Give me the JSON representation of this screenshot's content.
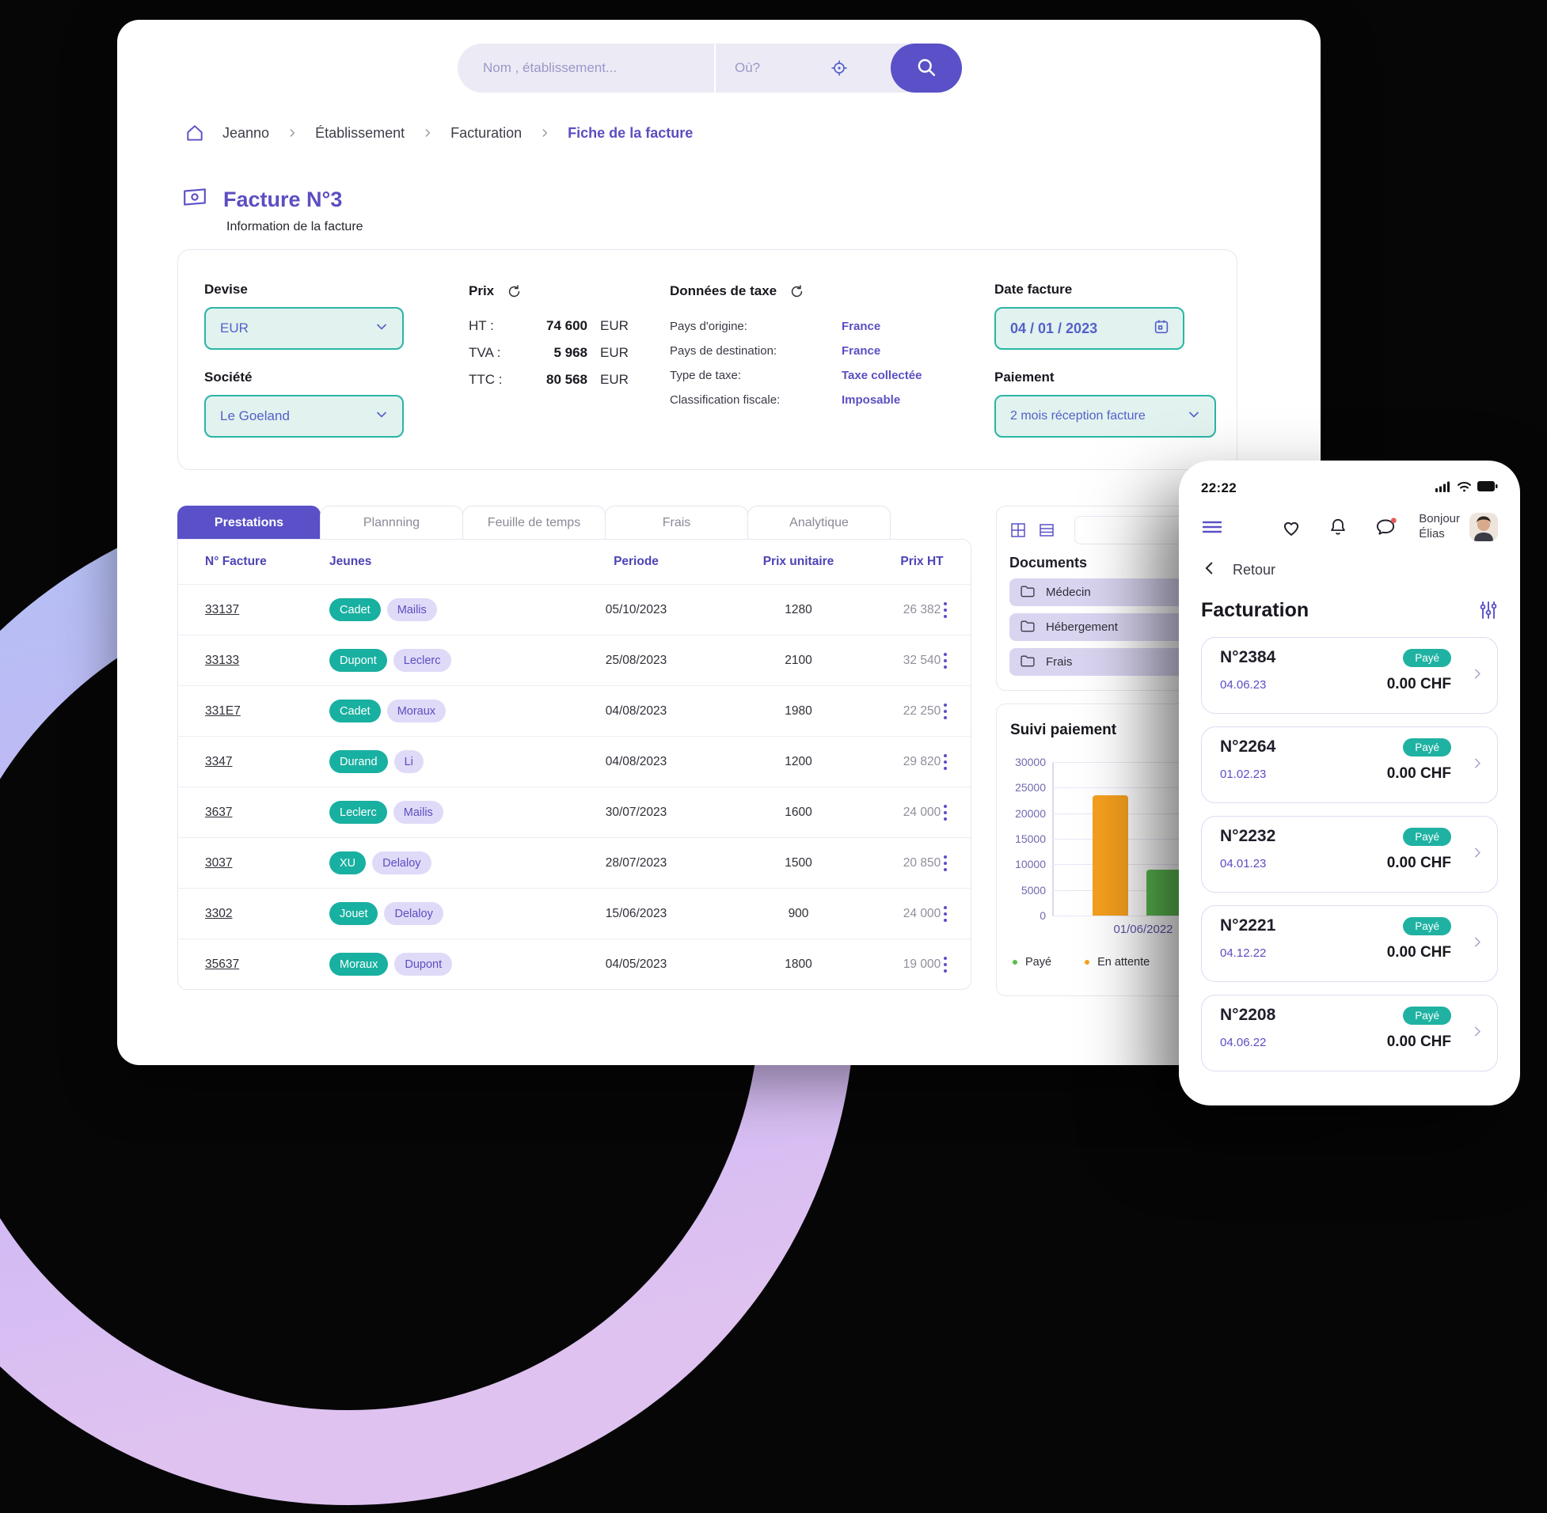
{
  "search": {
    "name_placeholder": "Nom , établissement...",
    "where_placeholder": "Où?"
  },
  "breadcrumb": {
    "items": [
      "Jeanno",
      "Établissement",
      "Facturation"
    ],
    "current": "Fiche de la facture"
  },
  "page": {
    "title": "Facture N°3",
    "subtitle": "Information de la facture"
  },
  "invoice_info": {
    "devise": {
      "label": "Devise",
      "value": "EUR"
    },
    "societe": {
      "label": "Société",
      "value": "Le Goeland"
    },
    "prix": {
      "label": "Prix",
      "rows": [
        {
          "label": "HT :",
          "value": "74 600",
          "currency": "EUR"
        },
        {
          "label": "TVA :",
          "value": "5 968",
          "currency": "EUR"
        },
        {
          "label": "TTC :",
          "value": "80 568",
          "currency": "EUR"
        }
      ]
    },
    "taxe": {
      "label": "Données de taxe",
      "rows": [
        {
          "label": "Pays d'origine:",
          "value": "France"
        },
        {
          "label": "Pays de destination:",
          "value": "France"
        },
        {
          "label": "Type de taxe:",
          "value": "Taxe collectée"
        },
        {
          "label": "Classification fiscale:",
          "value": "Imposable"
        }
      ]
    },
    "date": {
      "label": "Date facture",
      "value": "04 / 01 / 2023"
    },
    "paiement": {
      "label": "Paiement",
      "value": "2 mois réception facture"
    }
  },
  "tabs": [
    {
      "label": "Prestations",
      "active": true
    },
    {
      "label": "Plannning",
      "active": false
    },
    {
      "label": "Feuille de temps",
      "active": false
    },
    {
      "label": "Frais",
      "active": false
    },
    {
      "label": "Analytique",
      "active": false
    }
  ],
  "table": {
    "headers": [
      "N° Facture",
      "Jeunes",
      "Periode",
      "Prix unitaire",
      "Prix HT"
    ],
    "rows": [
      {
        "num": "33137",
        "tags": [
          "Cadet",
          "Mailis"
        ],
        "periode": "05/10/2023",
        "prix_unitaire": "1280",
        "prix_ht": "26 382"
      },
      {
        "num": "33133",
        "tags": [
          "Dupont",
          "Leclerc"
        ],
        "periode": "25/08/2023",
        "prix_unitaire": "2100",
        "prix_ht": "32 540"
      },
      {
        "num": "331E7",
        "tags": [
          "Cadet",
          "Moraux"
        ],
        "periode": "04/08/2023",
        "prix_unitaire": "1980",
        "prix_ht": "22 250"
      },
      {
        "num": "3347",
        "tags": [
          "Durand",
          "Li"
        ],
        "periode": "04/08/2023",
        "prix_unitaire": "1200",
        "prix_ht": "29 820"
      },
      {
        "num": "3637",
        "tags": [
          "Leclerc",
          "Mailis"
        ],
        "periode": "30/07/2023",
        "prix_unitaire": "1600",
        "prix_ht": "24 000"
      },
      {
        "num": "3037",
        "tags": [
          "XU",
          "Delaloy"
        ],
        "periode": "28/07/2023",
        "prix_unitaire": "1500",
        "prix_ht": "20 850"
      },
      {
        "num": "3302",
        "tags": [
          "Jouet",
          "Delaloy"
        ],
        "periode": "15/06/2023",
        "prix_unitaire": "900",
        "prix_ht": "24 000"
      },
      {
        "num": "35637",
        "tags": [
          "Moraux",
          "Dupont"
        ],
        "periode": "04/05/2023",
        "prix_unitaire": "1800",
        "prix_ht": "19 000"
      }
    ]
  },
  "documents": {
    "title": "Documents",
    "folders": [
      "Médecin",
      "Hébergement",
      "Frais"
    ]
  },
  "chart_data": {
    "type": "bar",
    "title": "Suivi paiement",
    "categories": [
      "01/06/2022"
    ],
    "series": [
      {
        "name": "En attente",
        "values": [
          23500
        ],
        "color": "#F6A01E"
      },
      {
        "name": "Payé",
        "values": [
          9000
        ],
        "color": "#5CBB50"
      }
    ],
    "ylim": [
      0,
      30000
    ],
    "ytick_step": 5000,
    "grid": true,
    "legend_position": "bottom",
    "legend": [
      {
        "label": "Payé",
        "color": "#5CBB50"
      },
      {
        "label": "En attente",
        "color": "#F6A01E"
      }
    ]
  },
  "phone": {
    "time": "22:22",
    "greeting": {
      "line1": "Bonjour",
      "line2": "Élias"
    },
    "back_label": "Retour",
    "title": "Facturation",
    "invoices": [
      {
        "number": "N°2384",
        "status": "Payé",
        "date": "04.06.23",
        "amount": "0.00 CHF"
      },
      {
        "number": "N°2264",
        "status": "Payé",
        "date": "01.02.23",
        "amount": "0.00 CHF"
      },
      {
        "number": "N°2232",
        "status": "Payé",
        "date": "04.01.23",
        "amount": "0.00 CHF"
      },
      {
        "number": "N°2221",
        "status": "Payé",
        "date": "04.12.22",
        "amount": "0.00 CHF"
      },
      {
        "number": "N°2208",
        "status": "Payé",
        "date": "04.06.22",
        "amount": "0.00 CHF"
      }
    ]
  },
  "colors": {
    "brand_purple": "#5A50C7",
    "accent_teal": "#2AB5A5",
    "tag_teal": "#18B0A0",
    "status_orange": "#F6A01E",
    "status_green": "#5CBB50"
  }
}
